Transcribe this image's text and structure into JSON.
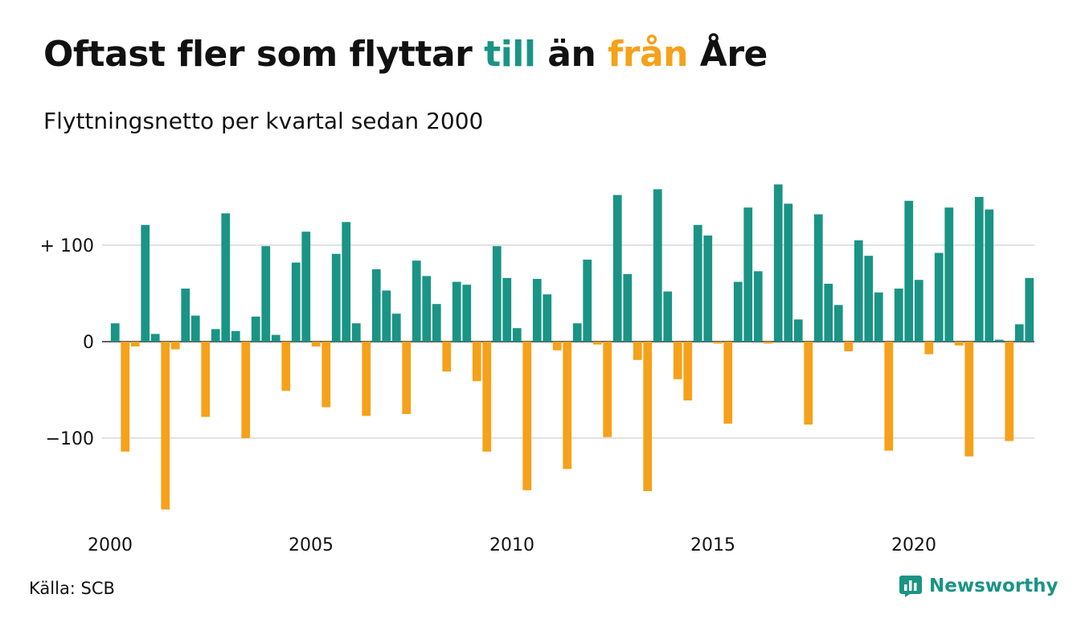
{
  "title": {
    "part1": "Oftast fler som flyttar ",
    "part2": "till",
    "part3": " än ",
    "part4": "från",
    "part5": " Åre"
  },
  "subtitle": "Flyttningsnetto per kvartal sedan 2000",
  "source": "Källa: SCB",
  "brand": {
    "name": "Newsworthy",
    "icon": "newsworthy-logo-icon"
  },
  "colors": {
    "positive": "#1a9485",
    "negative": "#f5a11a",
    "grid": "#e2e2e2",
    "text": "#111111",
    "brand": "#1a9485"
  },
  "chart_data": {
    "type": "bar",
    "title": "Oftast fler som flyttar till än från Åre",
    "subtitle": "Flyttningsnetto per kvartal sedan 2000",
    "xlabel": "",
    "ylabel": "",
    "start_year": 2000,
    "x_ticks": [
      "2000",
      "2005",
      "2010",
      "2015",
      "2020"
    ],
    "y_ticks": [
      {
        "value": 100,
        "label": "+ 100"
      },
      {
        "value": 0,
        "label": "0"
      },
      {
        "value": -100,
        "label": "−100"
      }
    ],
    "ylim": [
      -180,
      170
    ],
    "grid": true,
    "legend": "none",
    "values": [
      19,
      -114,
      -5,
      121,
      8,
      -174,
      -8,
      55,
      27,
      -78,
      13,
      133,
      11,
      -100,
      26,
      99,
      7,
      -51,
      82,
      114,
      -5,
      -68,
      91,
      124,
      19,
      -77,
      75,
      53,
      29,
      -75,
      84,
      68,
      39,
      -31,
      62,
      59,
      -41,
      -114,
      99,
      66,
      14,
      -154,
      65,
      49,
      -9,
      -132,
      19,
      85,
      -3,
      -99,
      152,
      70,
      -19,
      -155,
      158,
      52,
      -39,
      -61,
      121,
      110,
      -2,
      -85,
      62,
      139,
      73,
      -2,
      163,
      143,
      23,
      -86,
      132,
      60,
      38,
      -10,
      105,
      89,
      51,
      -113,
      55,
      146,
      64,
      -13,
      92,
      139,
      -4,
      -119,
      150,
      137,
      2,
      -103,
      18,
      66
    ]
  }
}
